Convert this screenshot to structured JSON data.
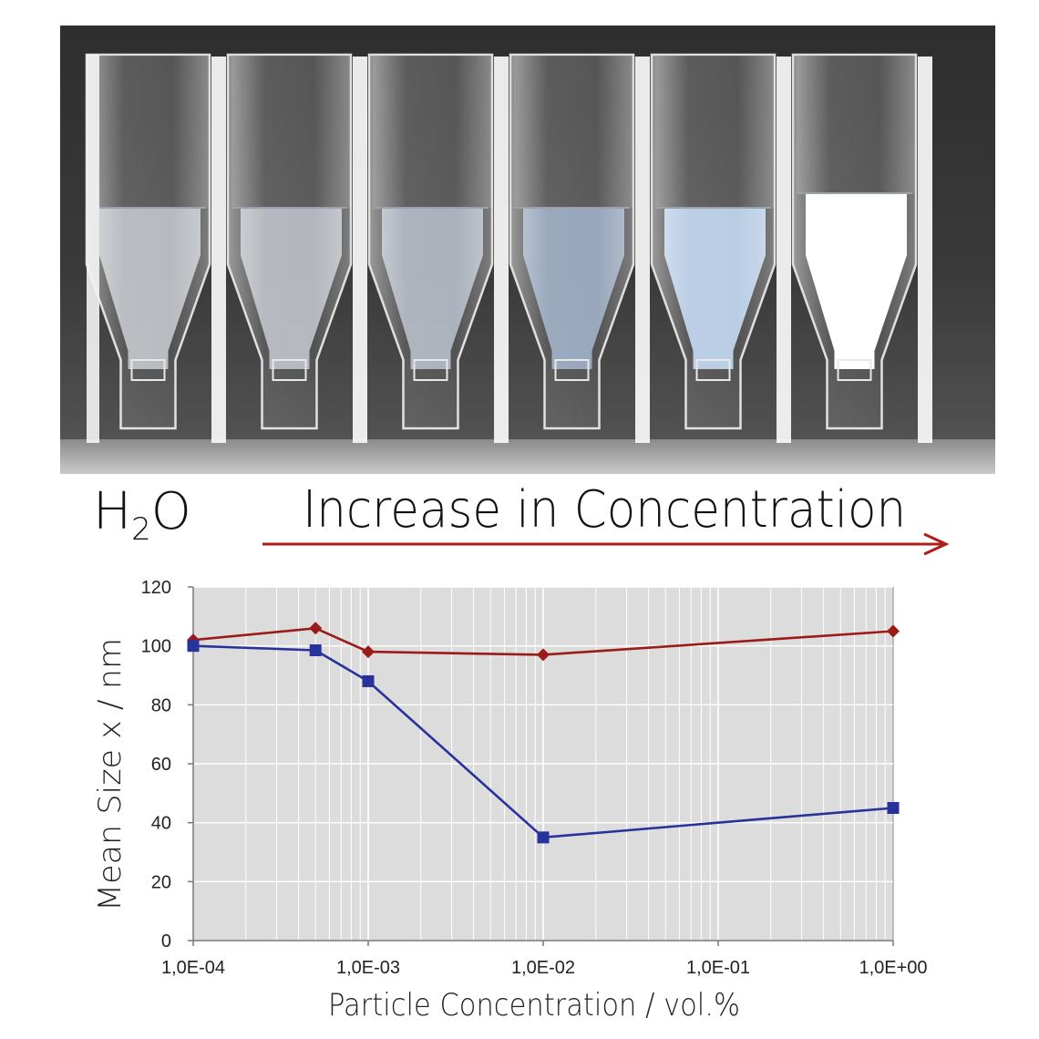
{
  "header": {
    "water_label_main": "H",
    "water_label_sub": "2",
    "water_label_tail": "O",
    "arrow_label": "Increase in Concentration",
    "arrow_color": "#b01c1c"
  },
  "photo": {
    "background_color": "#2a2a2a",
    "cuvette_count": 6,
    "liquid_colors": [
      "#c7cbd1",
      "#c2c7cf",
      "#b7c0cd",
      "#9fb2cb",
      "#b4c9e2",
      "#ffffff"
    ]
  },
  "chart_data": {
    "type": "line",
    "xscale": "log",
    "x": [
      0.0001,
      0.0005,
      0.001,
      0.01,
      1.0
    ],
    "xticks": [
      0.0001,
      0.001,
      0.01,
      0.1,
      1.0
    ],
    "xtick_labels": [
      "1,0E-04",
      "1,0E-03",
      "1,0E-02",
      "1,0E-01",
      "1,0E+00"
    ],
    "yticks": [
      0,
      20,
      40,
      60,
      80,
      100,
      120
    ],
    "ytick_labels": [
      "0",
      "20",
      "40",
      "60",
      "80",
      "100",
      "120"
    ],
    "xlim": [
      0.0001,
      1.0
    ],
    "ylim": [
      0,
      120
    ],
    "xlabel": "Particle Concentration / vol.%",
    "ylabel": "Mean Size x / nm",
    "grid": true,
    "plot_background": "#dcdcdc",
    "series": [
      {
        "color": "#9b1b1b",
        "marker": "diamond",
        "values": [
          102,
          106,
          98,
          97,
          105
        ]
      },
      {
        "color": "#27339b",
        "marker": "square",
        "values": [
          100,
          98.5,
          88,
          35,
          45
        ]
      }
    ]
  }
}
